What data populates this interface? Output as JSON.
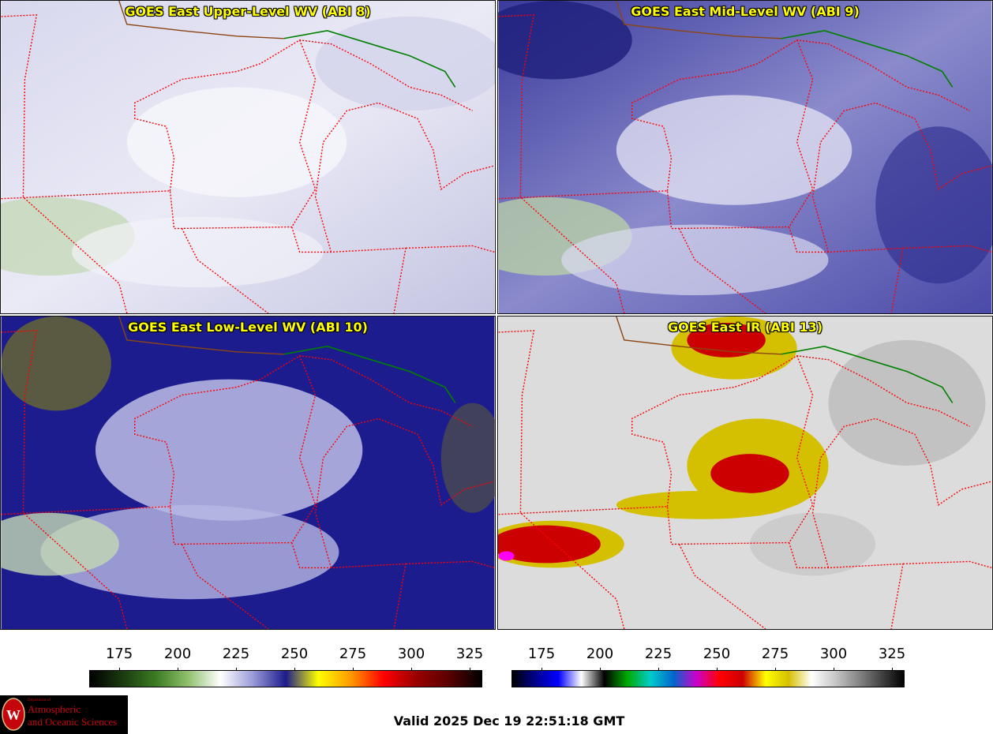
{
  "panels": [
    {
      "title": "GOES East Upper-Level WV (ABI 8)"
    },
    {
      "title": "GOES East Mid-Level WV (ABI 9)"
    },
    {
      "title": "GOES East Low-Level WV (ABI 10)"
    },
    {
      "title": "GOES East IR (ABI 13)"
    }
  ],
  "colorbars": [
    {
      "ticks": [
        "175",
        "200",
        "225",
        "250",
        "275",
        "300",
        "325"
      ],
      "stops": [
        "#000000",
        "#1a3a10",
        "#3a7a22",
        "#8fc06c",
        "#ffffff",
        "#9a9ad8",
        "#1c1c8c",
        "#ffff00",
        "#ff9900",
        "#ff0000",
        "#9a0000",
        "#5a0000",
        "#000000"
      ]
    },
    {
      "ticks": [
        "175",
        "200",
        "225",
        "250",
        "275",
        "300",
        "325"
      ],
      "stops": [
        "#000000",
        "#00008c",
        "#0000ff",
        "#ffffff",
        "#000000",
        "#00aa00",
        "#00cccc",
        "#0066cc",
        "#cc00cc",
        "#ff0000",
        "#cc0000",
        "#ffff00",
        "#d4c000",
        "#ffffff",
        "#c8c8c8",
        "#888888",
        "#444444",
        "#000000"
      ]
    }
  ],
  "valid_text": "Valid 2025 Dec 19 22:51:18 GMT",
  "logo": {
    "line1": "Department of",
    "line2": "Atmospheric",
    "line3": "and Oceanic Sciences"
  },
  "colors": {
    "state_border": "#ff0000",
    "country_border": "#008000",
    "title_text": "#ffff00"
  }
}
